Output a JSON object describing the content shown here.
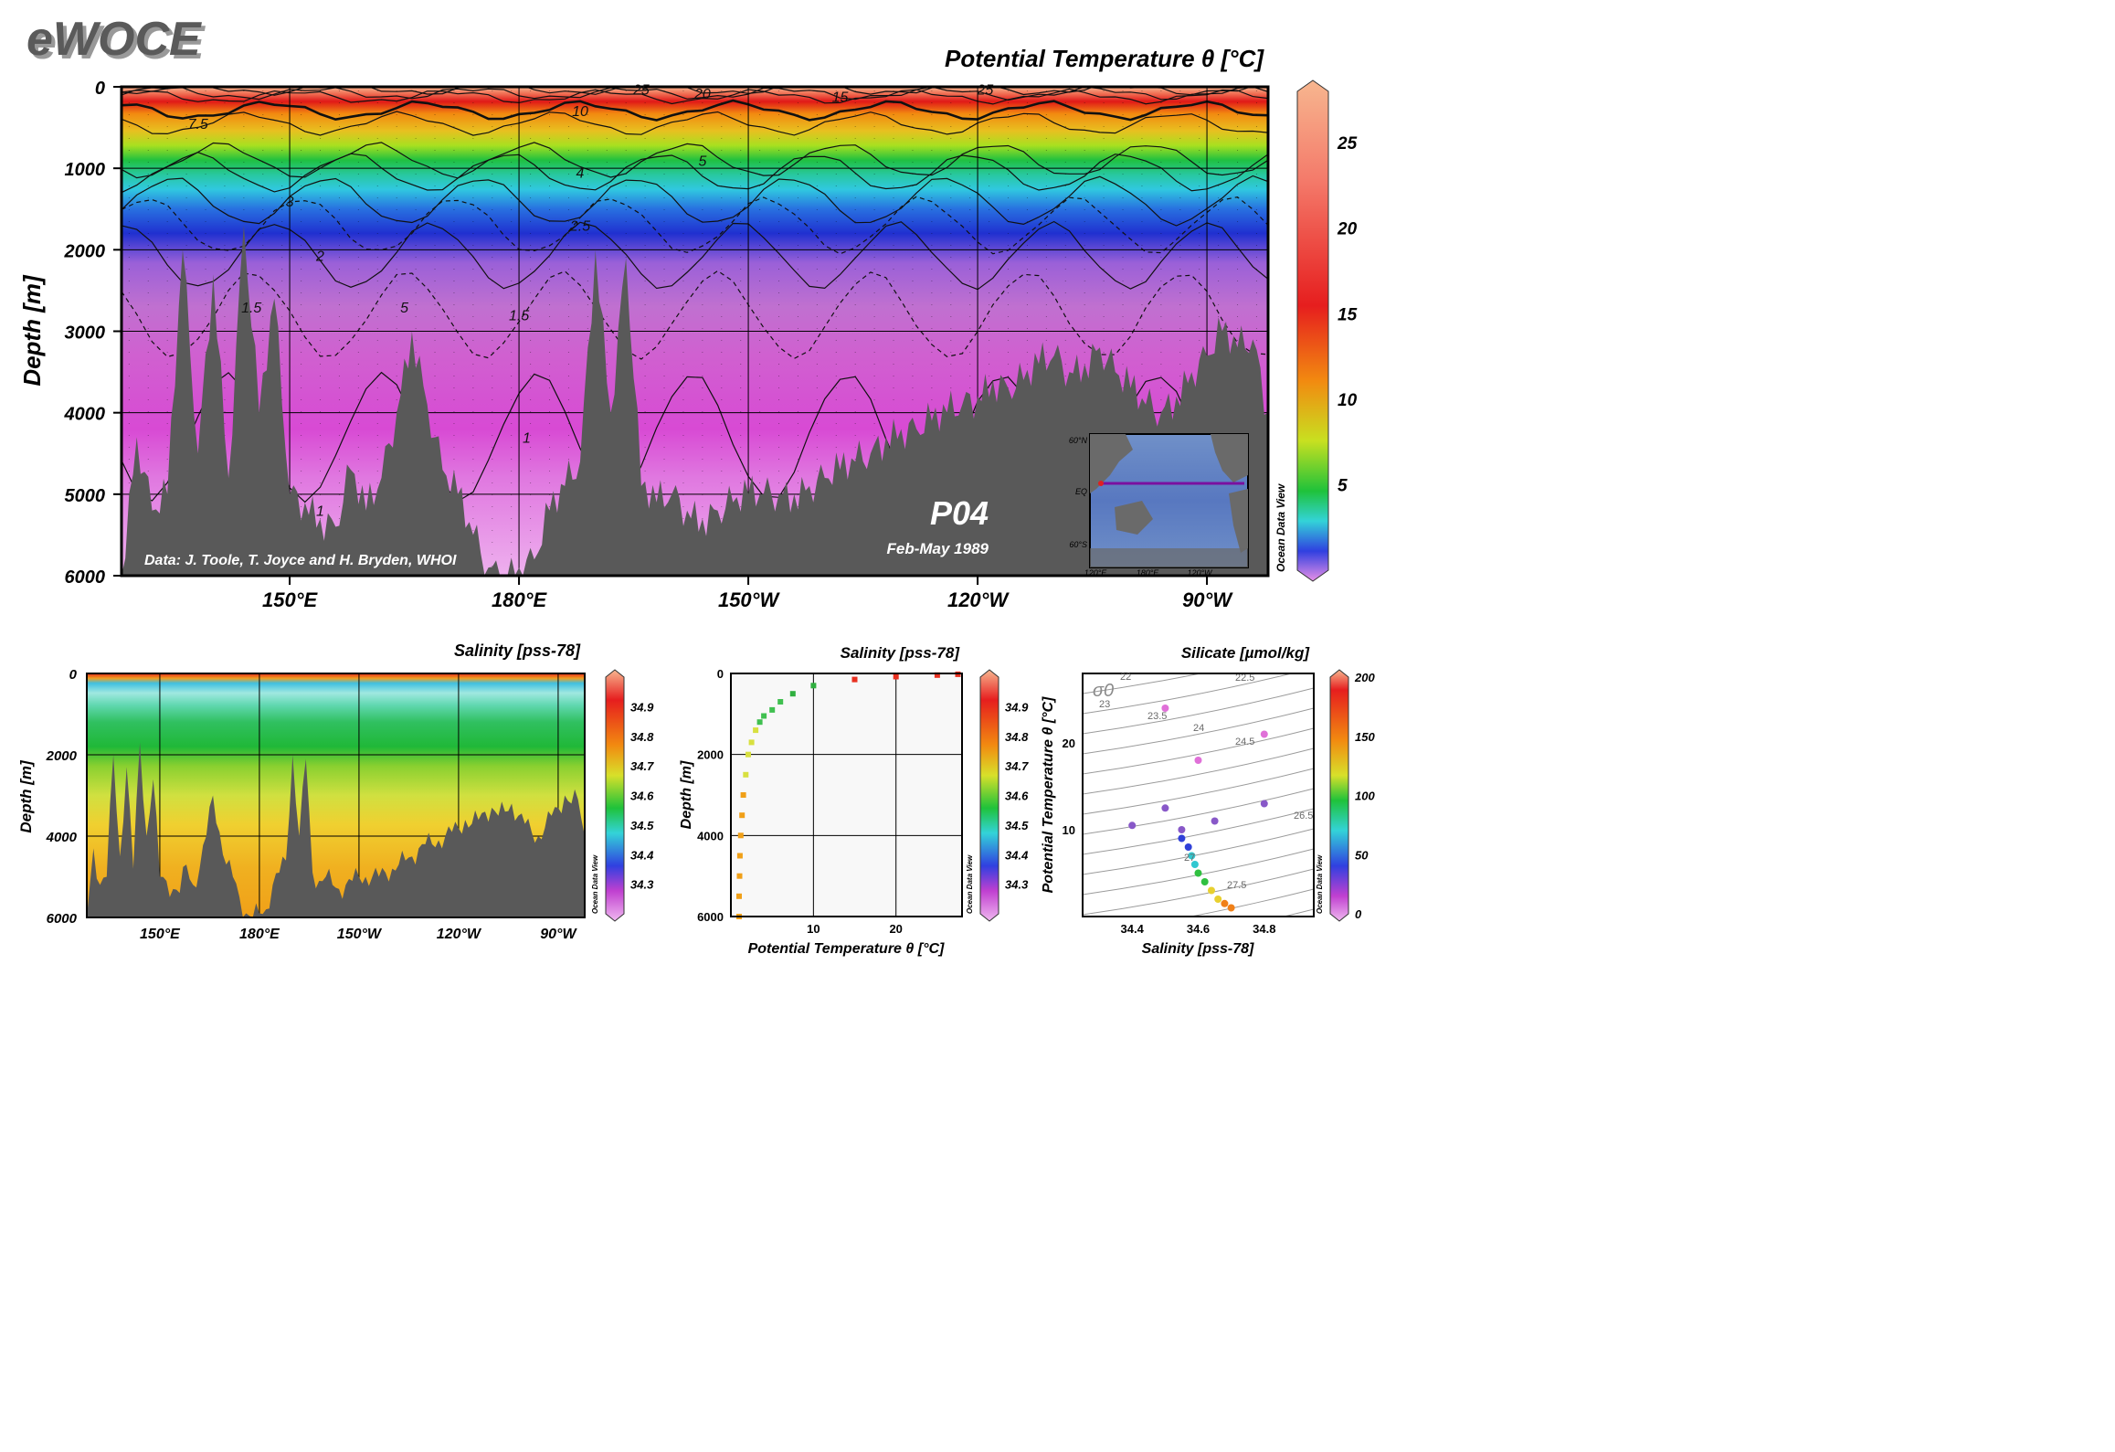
{
  "header": {
    "logo": "eWOCE",
    "title": "Potential Temperature θ [°C]"
  },
  "main_section": {
    "section_name": "P04",
    "dates": "Feb-May 1989",
    "credit": "Data: J. Toole, T. Joyce and H. Bryden, WHOI",
    "ylabel": "Depth [m]",
    "y_ticks": [
      "0",
      "1000",
      "2000",
      "3000",
      "4000",
      "5000",
      "6000"
    ],
    "x_ticks": [
      "150°E",
      "180°E",
      "150°W",
      "120°W",
      "90°W"
    ],
    "colorbar_ticks": [
      "25",
      "20",
      "15",
      "10",
      "5"
    ],
    "watermark": "Ocean Data View",
    "contour_labels": [
      "25",
      "20",
      "15",
      "10",
      "7.5",
      "5",
      "4",
      "3",
      "2.5",
      "2",
      "1.5",
      "1",
      "5",
      "1.5",
      "1",
      "25"
    ],
    "inset_lat_labels": [
      "60°N",
      "EQ",
      "60°S"
    ],
    "inset_lon_labels": [
      "120°E",
      "180°E",
      "120°W"
    ]
  },
  "salinity_section": {
    "title": "Salinity [pss-78]",
    "ylabel": "Depth [m]",
    "y_ticks": [
      "0",
      "2000",
      "4000",
      "6000"
    ],
    "x_ticks": [
      "150°E",
      "180°E",
      "150°W",
      "120°W",
      "90°W"
    ],
    "colorbar_ticks": [
      "34.9",
      "34.8",
      "34.7",
      "34.6",
      "34.5",
      "34.4",
      "34.3"
    ],
    "watermark": "Ocean Data View"
  },
  "profile_plot": {
    "title": "Salinity [pss-78]",
    "ylabel": "Depth [m]",
    "xlabel": "Potential Temperature θ [°C]",
    "y_ticks": [
      "0",
      "2000",
      "4000",
      "6000"
    ],
    "x_ticks": [
      "10",
      "20"
    ],
    "colorbar_ticks": [
      "34.9",
      "34.8",
      "34.7",
      "34.6",
      "34.5",
      "34.4",
      "34.3"
    ],
    "watermark": "Ocean Data View"
  },
  "ts_plot": {
    "title": "Silicate [µmol/kg]",
    "ylabel": "Potential Temperature θ [°C]",
    "xlabel": "Salinity [pss-78]",
    "y_ticks": [
      "20",
      "10"
    ],
    "x_ticks": [
      "34.4",
      "34.6",
      "34.8"
    ],
    "colorbar_ticks": [
      "200",
      "150",
      "100",
      "50",
      "0"
    ],
    "sigma_label": "σ0",
    "density_labels": [
      "23",
      "23.5",
      "24",
      "24.5",
      "22.5",
      "26.5",
      "27",
      "27.5",
      "22"
    ],
    "watermark": "Ocean Data View"
  },
  "chart_data": [
    {
      "type": "heatmap",
      "title": "Potential Temperature θ [°C]",
      "ylabel": "Depth [m]",
      "ylim": [
        6000,
        0
      ],
      "xlim_lon_east": [
        128,
        278
      ],
      "x_ticks_lon_east": [
        150,
        180,
        210,
        240,
        270
      ],
      "colorbar_range": [
        0,
        28
      ],
      "contour_levels": [
        25,
        20,
        15,
        10,
        7.5,
        5,
        4,
        3,
        2.5,
        2,
        1.5,
        1
      ],
      "contour_depths": [
        {
          "level": 25,
          "depth": 30
        },
        {
          "level": 20,
          "depth": 80
        },
        {
          "level": 15,
          "depth": 120
        },
        {
          "level": 10,
          "depth": 290
        },
        {
          "level": 7.5,
          "depth": 450
        },
        {
          "level": 5,
          "depth": 900
        },
        {
          "level": 4,
          "depth": 1050
        },
        {
          "level": 3,
          "depth": 1400
        },
        {
          "level": 2.5,
          "depth": 1700
        },
        {
          "level": 2,
          "depth": 2070
        },
        {
          "level": 1.5,
          "depth": 2800
        },
        {
          "level": 1,
          "depth": 4300
        }
      ],
      "bathymetry": {
        "lon_east": [
          128,
          130,
          132,
          134,
          136,
          138,
          140,
          142,
          144,
          146,
          148,
          150,
          152,
          154,
          156,
          158,
          160,
          162,
          164,
          166,
          168,
          170,
          172,
          174,
          176,
          178,
          180,
          182,
          184,
          186,
          188,
          190,
          192,
          194,
          196,
          198,
          200,
          202,
          204,
          206,
          208,
          210,
          212,
          214,
          216,
          218,
          220,
          222,
          224,
          226,
          228,
          230,
          232,
          234,
          236,
          238,
          240,
          242,
          244,
          246,
          248,
          250,
          252,
          254,
          256,
          258,
          260,
          262,
          264,
          266,
          268,
          270,
          272,
          274,
          276,
          278
        ],
        "depth": [
          6000,
          4300,
          5200,
          5000,
          2000,
          4500,
          2300,
          4800,
          1700,
          4000,
          2600,
          5000,
          5100,
          5300,
          5400,
          4700,
          5200,
          4800,
          4000,
          3000,
          3900,
          4700,
          5000,
          5500,
          5900,
          6000,
          5900,
          5800,
          5200,
          4900,
          4600,
          2000,
          4000,
          2100,
          4900,
          5100,
          5000,
          5200,
          5300,
          5200,
          5100,
          5000,
          5000,
          5000,
          5000,
          4900,
          4800,
          4700,
          4600,
          4500,
          4300,
          4200,
          4200,
          4100,
          4000,
          3900,
          3800,
          3600,
          3700,
          3600,
          3400,
          3300,
          3500,
          3400,
          3200,
          3500,
          3700,
          3900,
          4000,
          3800,
          3500,
          3300,
          3000,
          3200,
          3100,
          4000
        ]
      }
    },
    {
      "type": "heatmap",
      "title": "Salinity [pss-78]",
      "ylabel": "Depth [m]",
      "ylim": [
        6000,
        0
      ],
      "xlim_lon_east": [
        128,
        278
      ],
      "x_ticks_lon_east": [
        150,
        180,
        210,
        240,
        270
      ],
      "colorbar_range": [
        34.2,
        35.0
      ],
      "colorbar_ticks": [
        34.9,
        34.8,
        34.7,
        34.6,
        34.5,
        34.4,
        34.3
      ]
    },
    {
      "type": "scatter",
      "title": "Salinity [pss-78]",
      "xlabel": "Potential Temperature θ [°C]",
      "ylabel": "Depth [m]",
      "xlim": [
        0,
        28
      ],
      "ylim": [
        6000,
        0
      ],
      "color_var": "Salinity [pss-78]",
      "points": [
        [
          1.0,
          6000
        ],
        [
          1.0,
          5500
        ],
        [
          1.05,
          5000
        ],
        [
          1.1,
          4500
        ],
        [
          1.2,
          4000
        ],
        [
          1.35,
          3500
        ],
        [
          1.5,
          3000
        ],
        [
          1.8,
          2500
        ],
        [
          2.1,
          2000
        ],
        [
          2.5,
          1700
        ],
        [
          3.0,
          1400
        ],
        [
          3.5,
          1200
        ],
        [
          4.0,
          1050
        ],
        [
          5.0,
          900
        ],
        [
          6.0,
          700
        ],
        [
          7.5,
          500
        ],
        [
          10.0,
          300
        ],
        [
          15.0,
          150
        ],
        [
          20.0,
          80
        ],
        [
          25.0,
          40
        ],
        [
          27.5,
          20
        ]
      ]
    },
    {
      "type": "scatter",
      "title": "Silicate [µmol/kg]",
      "xlabel": "Salinity [pss-78]",
      "ylabel": "Potential Temperature θ [°C]",
      "xlim": [
        34.25,
        34.95
      ],
      "ylim": [
        0,
        28
      ],
      "color_var": "Silicate [µmol/kg]",
      "colorbar_range": [
        0,
        200
      ],
      "density_isolines": [
        22,
        22.5,
        23,
        23.5,
        24,
        24.5,
        26.5,
        27,
        27.5
      ],
      "points": [
        {
          "s": 34.7,
          "t": 1.0,
          "si": 175
        },
        {
          "s": 34.68,
          "t": 1.5,
          "si": 160
        },
        {
          "s": 34.66,
          "t": 2.0,
          "si": 145
        },
        {
          "s": 34.64,
          "t": 3.0,
          "si": 120
        },
        {
          "s": 34.62,
          "t": 4.0,
          "si": 100
        },
        {
          "s": 34.6,
          "t": 5.0,
          "si": 85
        },
        {
          "s": 34.59,
          "t": 6.0,
          "si": 70
        },
        {
          "s": 34.58,
          "t": 7.0,
          "si": 55
        },
        {
          "s": 34.57,
          "t": 8.0,
          "si": 45
        },
        {
          "s": 34.55,
          "t": 9.0,
          "si": 30
        },
        {
          "s": 34.55,
          "t": 10.0,
          "si": 20
        },
        {
          "s": 34.65,
          "t": 11.0,
          "si": 15
        },
        {
          "s": 34.8,
          "t": 13.0,
          "si": 10
        },
        {
          "s": 34.4,
          "t": 10.5,
          "si": 25
        },
        {
          "s": 34.5,
          "t": 12.5,
          "si": 10
        },
        {
          "s": 34.6,
          "t": 18.0,
          "si": 3
        },
        {
          "s": 34.8,
          "t": 21.0,
          "si": 2
        },
        {
          "s": 34.5,
          "t": 24.0,
          "si": 1
        }
      ]
    }
  ]
}
